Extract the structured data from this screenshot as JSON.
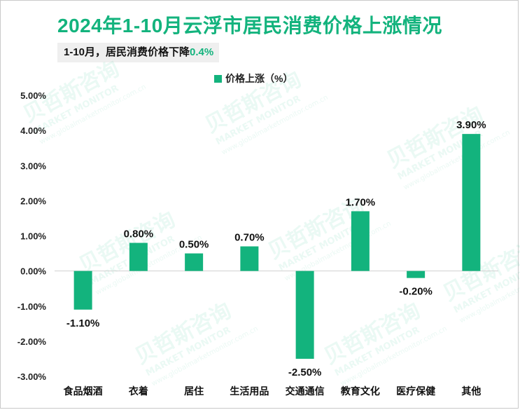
{
  "title": "2024年1-10月云浮市居民消费价格上涨情况",
  "subtitle": {
    "prefix": "1-10月，居民消费价格下降",
    "highlight": "0.4%"
  },
  "watermark": {
    "brand": "贝哲斯咨询",
    "tagline": "MARKET MONITOR",
    "site": "www.globalmarketmonitor.com.cn"
  },
  "colors": {
    "bar": "#13b37d",
    "title": "#13b37d",
    "axis": "#d0d0d0"
  },
  "chart_data": {
    "type": "bar",
    "title": "2024年1-10月云浮市居民消费价格上涨情况",
    "legend": "价格上涨（%）",
    "legend_position": "top-center",
    "categories": [
      "食品烟酒",
      "衣着",
      "居住",
      "生活用品",
      "交通通信",
      "教育文化",
      "医疗保健",
      "其他"
    ],
    "series": [
      {
        "name": "价格上涨（%）",
        "values": [
          -1.1,
          0.8,
          0.5,
          0.7,
          -2.5,
          1.7,
          -0.2,
          3.9
        ],
        "labels": [
          "-1.10%",
          "0.80%",
          "0.50%",
          "0.70%",
          "-2.50%",
          "1.70%",
          "-0.20%",
          "3.90%"
        ]
      }
    ],
    "ylim": [
      -3.0,
      5.0
    ],
    "yticks": [
      5.0,
      4.0,
      3.0,
      2.0,
      1.0,
      0.0,
      -1.0,
      -2.0,
      -3.0
    ],
    "ytick_labels": [
      "5.00%",
      "4.00%",
      "3.00%",
      "2.00%",
      "1.00%",
      "0.00%",
      "-1.00%",
      "-2.00%",
      "-3.00%"
    ],
    "grid": false,
    "xlabel": "",
    "ylabel": ""
  }
}
